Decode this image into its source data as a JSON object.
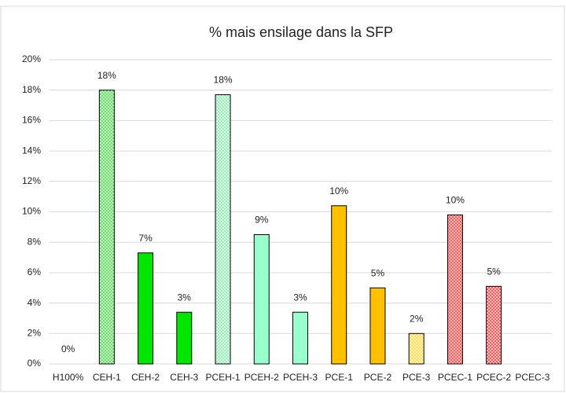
{
  "chart_data": {
    "type": "bar",
    "title": "% mais ensilage dans la SFP",
    "categories": [
      "H100%",
      "CEH-1",
      "CEH-2",
      "CEH-3",
      "PCEH-1",
      "PCEH-2",
      "PCEH-3",
      "PCE-1",
      "PCE-2",
      "PCE-3",
      "PCEC-1",
      "PCEC-2",
      "PCEC-3"
    ],
    "values": [
      0,
      18.0,
      7.3,
      3.4,
      17.7,
      8.5,
      3.4,
      10.4,
      5.0,
      2.0,
      9.8,
      5.1,
      0
    ],
    "value_labels": [
      "0%",
      "18%",
      "7%",
      "3%",
      "18%",
      "9%",
      "3%",
      "10%",
      "5%",
      "2%",
      "10%",
      "5%",
      null
    ],
    "colors": [
      "#00cc00",
      "#66dd66",
      "#00e600",
      "#00e600",
      "#99eebb",
      "#99ffcc",
      "#99ffcc",
      "#ffc000",
      "#ffc000",
      "#ffdd55",
      "#ff5555",
      "#ff5555",
      "#ff5555"
    ],
    "hatched": [
      false,
      true,
      false,
      false,
      true,
      false,
      false,
      false,
      false,
      true,
      true,
      true,
      true
    ],
    "ylim": [
      0,
      20
    ],
    "yticks": [
      {
        "value": 0,
        "label": "0%"
      },
      {
        "value": 2,
        "label": "2%"
      },
      {
        "value": 4,
        "label": "4%"
      },
      {
        "value": 6,
        "label": "6%"
      },
      {
        "value": 8,
        "label": "8%"
      },
      {
        "value": 10,
        "label": "10%"
      },
      {
        "value": 12,
        "label": "12%"
      },
      {
        "value": 14,
        "label": "14%"
      },
      {
        "value": 16,
        "label": "16%"
      },
      {
        "value": 18,
        "label": "18%"
      },
      {
        "value": 20,
        "label": "20%"
      }
    ],
    "grid": true
  }
}
